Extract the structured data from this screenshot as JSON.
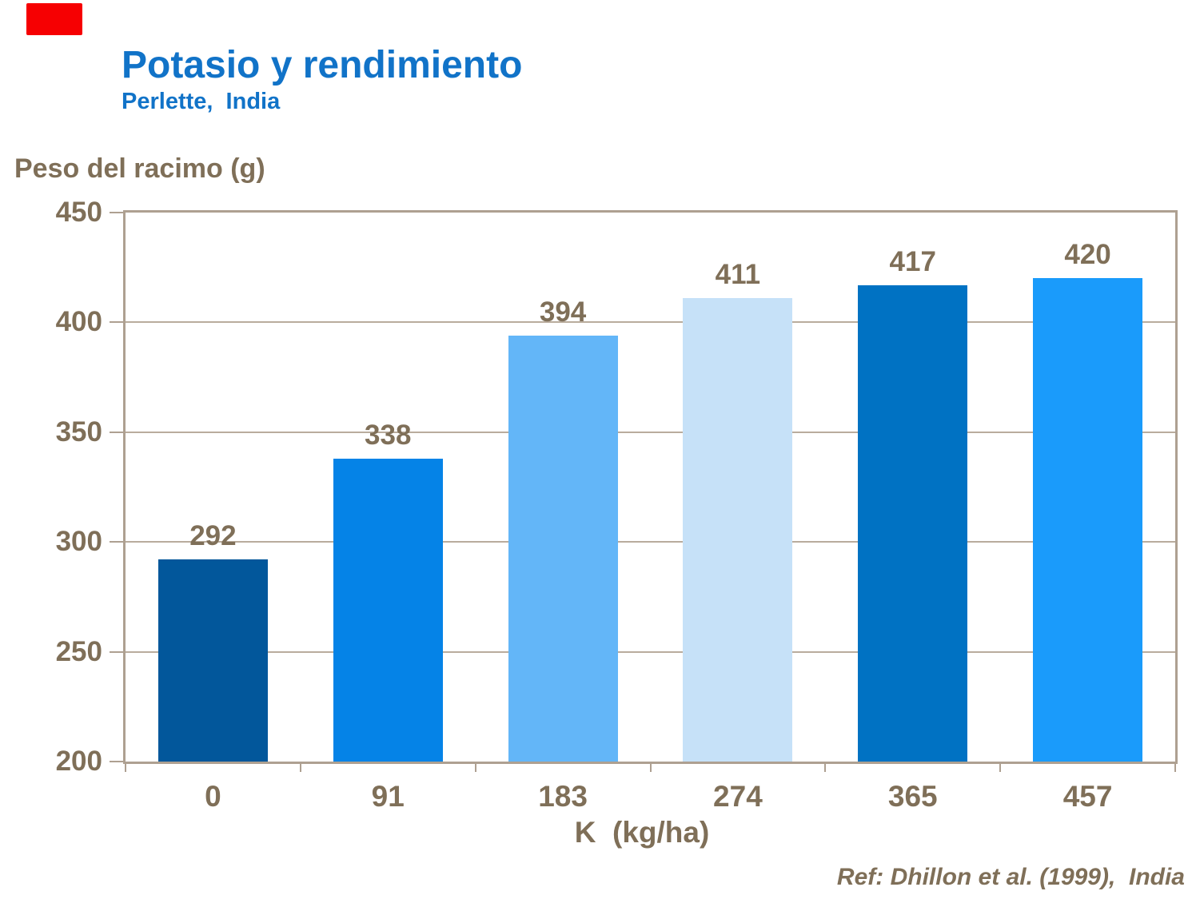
{
  "slide": {
    "title": "Potasio y rendimiento",
    "subtitle": "Perlette,  India",
    "reference": "Ref: Dhillon et al. (1999),  India"
  },
  "colors": {
    "title_blue": "#1173C8",
    "chart_text": "#7F6F58",
    "frame": "#AEA091",
    "gridline": "#B9AC9D",
    "red_box": "#F60002",
    "background": "#FFFFFF"
  },
  "chart_data": {
    "type": "bar",
    "title": "Potasio y rendimiento",
    "subtitle": "Perlette,  India",
    "ylabel": "Peso del racimo (g)",
    "xlabel": "K  (kg/ha)",
    "categories": [
      "0",
      "91",
      "183",
      "274",
      "365",
      "457"
    ],
    "values": [
      292,
      338,
      394,
      411,
      417,
      420
    ],
    "bar_colors": [
      "#02579B",
      "#0583E7",
      "#63B6F8",
      "#C6E1F8",
      "#0072C3",
      "#1A9BFB"
    ],
    "ylim": [
      200,
      450
    ],
    "yticks": [
      450,
      400,
      350,
      300,
      250,
      200
    ],
    "gridline_values": [
      400,
      350,
      300,
      250
    ],
    "grid": true,
    "legend_position": "none",
    "annotation": "Ref: Dhillon et al. (1999),  India"
  }
}
